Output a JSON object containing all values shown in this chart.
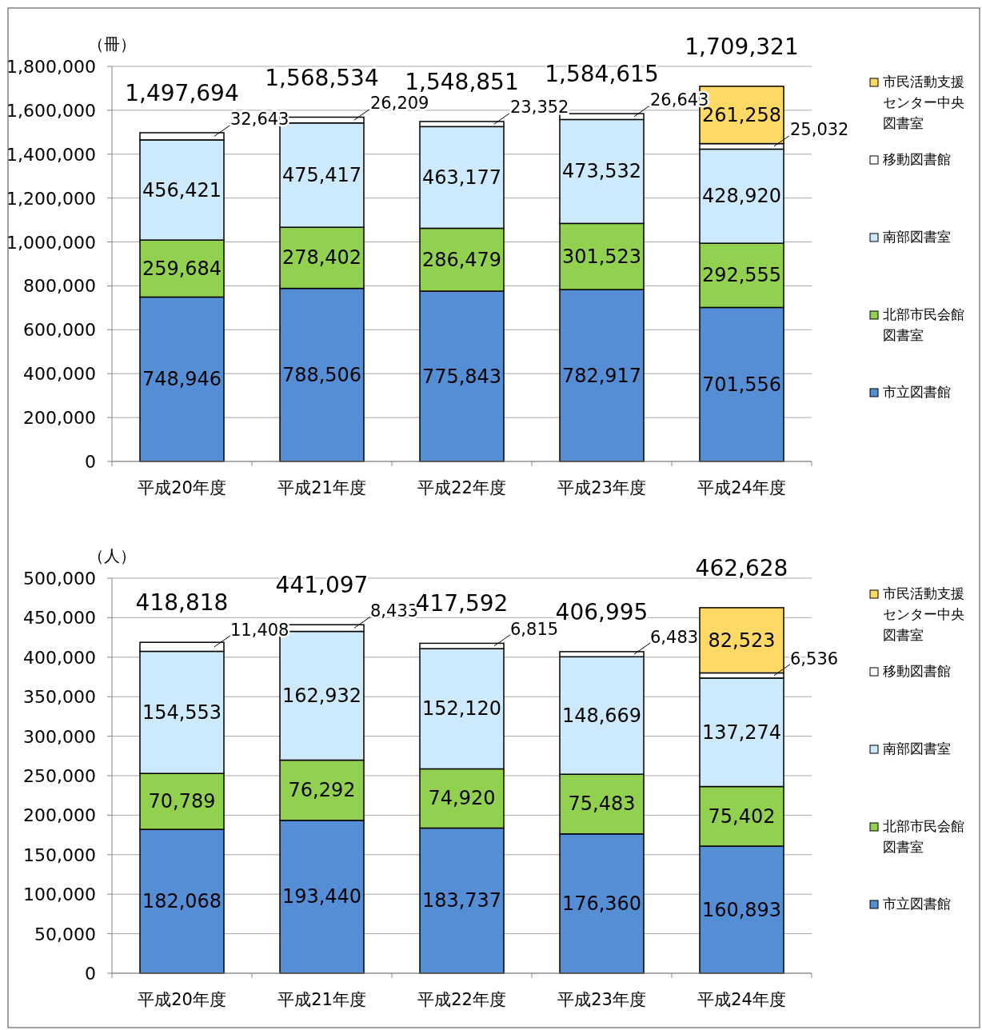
{
  "chart_data": [
    {
      "type": "bar",
      "stacked": true,
      "ylabel": "（冊）",
      "categories": [
        "平成20年度",
        "平成21年度",
        "平成22年度",
        "平成23年度",
        "平成24年度"
      ],
      "ylim": [
        0,
        1800000
      ],
      "yticks": [
        {
          "value": 0,
          "label": "0"
        },
        {
          "value": 200000,
          "label": "200,000"
        },
        {
          "value": 400000,
          "label": "400,000"
        },
        {
          "value": 600000,
          "label": "600,000"
        },
        {
          "value": 800000,
          "label": "800,000"
        },
        {
          "value": 1000000,
          "label": "1,000,000"
        },
        {
          "value": 1200000,
          "label": "1,200,000"
        },
        {
          "value": 1400000,
          "label": "1,400,000"
        },
        {
          "value": 1600000,
          "label": "1,600,000"
        },
        {
          "value": 1800000,
          "label": "1,800,000"
        }
      ],
      "grid": true,
      "legend": "right",
      "series": [
        {
          "name": "市立図書館",
          "color": "#558ed5",
          "values": [
            748946,
            788506,
            775843,
            782917,
            701556
          ],
          "value_labels": [
            "748,946",
            "788,506",
            "775,843",
            "782,917",
            "701,556"
          ]
        },
        {
          "name": "北部市民会館図書室",
          "color": "#92d050",
          "values": [
            259684,
            278402,
            286479,
            301523,
            292555
          ],
          "value_labels": [
            "259,684",
            "278,402",
            "286,479",
            "301,523",
            "292,555"
          ]
        },
        {
          "name": "南部図書室",
          "color": "#cdeafc",
          "values": [
            456421,
            475417,
            463177,
            473532,
            428920
          ],
          "value_labels": [
            "456,421",
            "475,417",
            "463,177",
            "473,532",
            "428,920"
          ]
        },
        {
          "name": "移動図書館",
          "color": "#ffffff",
          "values": [
            32643,
            26209,
            23352,
            26643,
            25032
          ],
          "value_labels": [
            "32,643",
            "26,209",
            "23,352",
            "26,643",
            "25,032"
          ]
        },
        {
          "name": "市民活動支援センター中央図書室",
          "color": "#ffd966",
          "values": [
            null,
            null,
            null,
            null,
            261258
          ],
          "value_labels": [
            null,
            null,
            null,
            null,
            "261,258"
          ]
        }
      ],
      "totals": [
        "1,497,694",
        "1,568,534",
        "1,548,851",
        "1,584,615",
        "1,709,321"
      ]
    },
    {
      "type": "bar",
      "stacked": true,
      "ylabel": "（人）",
      "categories": [
        "平成20年度",
        "平成21年度",
        "平成22年度",
        "平成23年度",
        "平成24年度"
      ],
      "ylim": [
        0,
        500000
      ],
      "yticks": [
        {
          "value": 0,
          "label": "0"
        },
        {
          "value": 50000,
          "label": "50,000"
        },
        {
          "value": 100000,
          "label": "100,000"
        },
        {
          "value": 150000,
          "label": "150,000"
        },
        {
          "value": 200000,
          "label": "200,000"
        },
        {
          "value": 250000,
          "label": "250,000"
        },
        {
          "value": 300000,
          "label": "300,000"
        },
        {
          "value": 350000,
          "label": "350,000"
        },
        {
          "value": 400000,
          "label": "400,000"
        },
        {
          "value": 450000,
          "label": "450,000"
        },
        {
          "value": 500000,
          "label": "500,000"
        }
      ],
      "grid": true,
      "legend": "right",
      "series": [
        {
          "name": "市立図書館",
          "color": "#558ed5",
          "values": [
            182068,
            193440,
            183737,
            176360,
            160893
          ],
          "value_labels": [
            "182,068",
            "193,440",
            "183,737",
            "176,360",
            "160,893"
          ]
        },
        {
          "name": "北部市民会館図書室",
          "color": "#92d050",
          "values": [
            70789,
            76292,
            74920,
            75483,
            75402
          ],
          "value_labels": [
            "70,789",
            "76,292",
            "74,920",
            "75,483",
            "75,402"
          ]
        },
        {
          "name": "南部図書室",
          "color": "#cdeafc",
          "values": [
            154553,
            162932,
            152120,
            148669,
            137274
          ],
          "value_labels": [
            "154,553",
            "162,932",
            "152,120",
            "148,669",
            "137,274"
          ]
        },
        {
          "name": "移動図書館",
          "color": "#ffffff",
          "values": [
            11408,
            8433,
            6815,
            6483,
            6536
          ],
          "value_labels": [
            "11,408",
            "8,433",
            "6,815",
            "6,483",
            "6,536"
          ]
        },
        {
          "name": "市民活動支援センター中央図書室",
          "color": "#ffd966",
          "values": [
            null,
            null,
            null,
            null,
            82523
          ],
          "value_labels": [
            null,
            null,
            null,
            null,
            "82,523"
          ]
        }
      ],
      "totals": [
        "418,818",
        "441,097",
        "417,592",
        "406,995",
        "462,628"
      ]
    }
  ]
}
